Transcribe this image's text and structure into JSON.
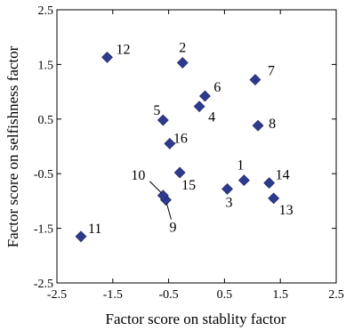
{
  "chart_data": {
    "type": "scatter",
    "xlabel": "Factor score on stablity factor",
    "ylabel": "Factor score on selfishness factor",
    "xlim": [
      -2.5,
      2.5
    ],
    "ylim": [
      -2.5,
      2.5
    ],
    "xticks": [
      "-2.5",
      "-1.5",
      "-0.5",
      "0.5",
      "1.5",
      "2.5"
    ],
    "yticks": [
      "2.5",
      "1.5",
      "0.5",
      "-0.5",
      "-1.5",
      "-2.5"
    ],
    "xtick_values": [
      -2.5,
      -1.5,
      -0.5,
      0.5,
      1.5,
      2.5
    ],
    "ytick_values": [
      2.5,
      1.5,
      0.5,
      -0.5,
      -1.5,
      -2.5
    ],
    "grid": false,
    "marker_color": "#2E3A8C",
    "points": [
      {
        "label": "1",
        "x": 0.85,
        "y": -0.62
      },
      {
        "label": "2",
        "x": -0.25,
        "y": 1.53
      },
      {
        "label": "3",
        "x": 0.55,
        "y": -0.78
      },
      {
        "label": "4",
        "x": 0.05,
        "y": 0.73
      },
      {
        "label": "5",
        "x": -0.6,
        "y": 0.48
      },
      {
        "label": "6",
        "x": 0.15,
        "y": 0.92
      },
      {
        "label": "7",
        "x": 1.05,
        "y": 1.22
      },
      {
        "label": "8",
        "x": 1.1,
        "y": 0.38
      },
      {
        "label": "9",
        "x": -0.55,
        "y": -0.98
      },
      {
        "label": "10",
        "x": -0.6,
        "y": -0.9
      },
      {
        "label": "11",
        "x": -2.07,
        "y": -1.65
      },
      {
        "label": "12",
        "x": -1.6,
        "y": 1.63
      },
      {
        "label": "13",
        "x": 1.38,
        "y": -0.95
      },
      {
        "label": "14",
        "x": 1.3,
        "y": -0.67
      },
      {
        "label": "15",
        "x": -0.3,
        "y": -0.48
      },
      {
        "label": "16",
        "x": -0.48,
        "y": 0.05
      }
    ]
  }
}
